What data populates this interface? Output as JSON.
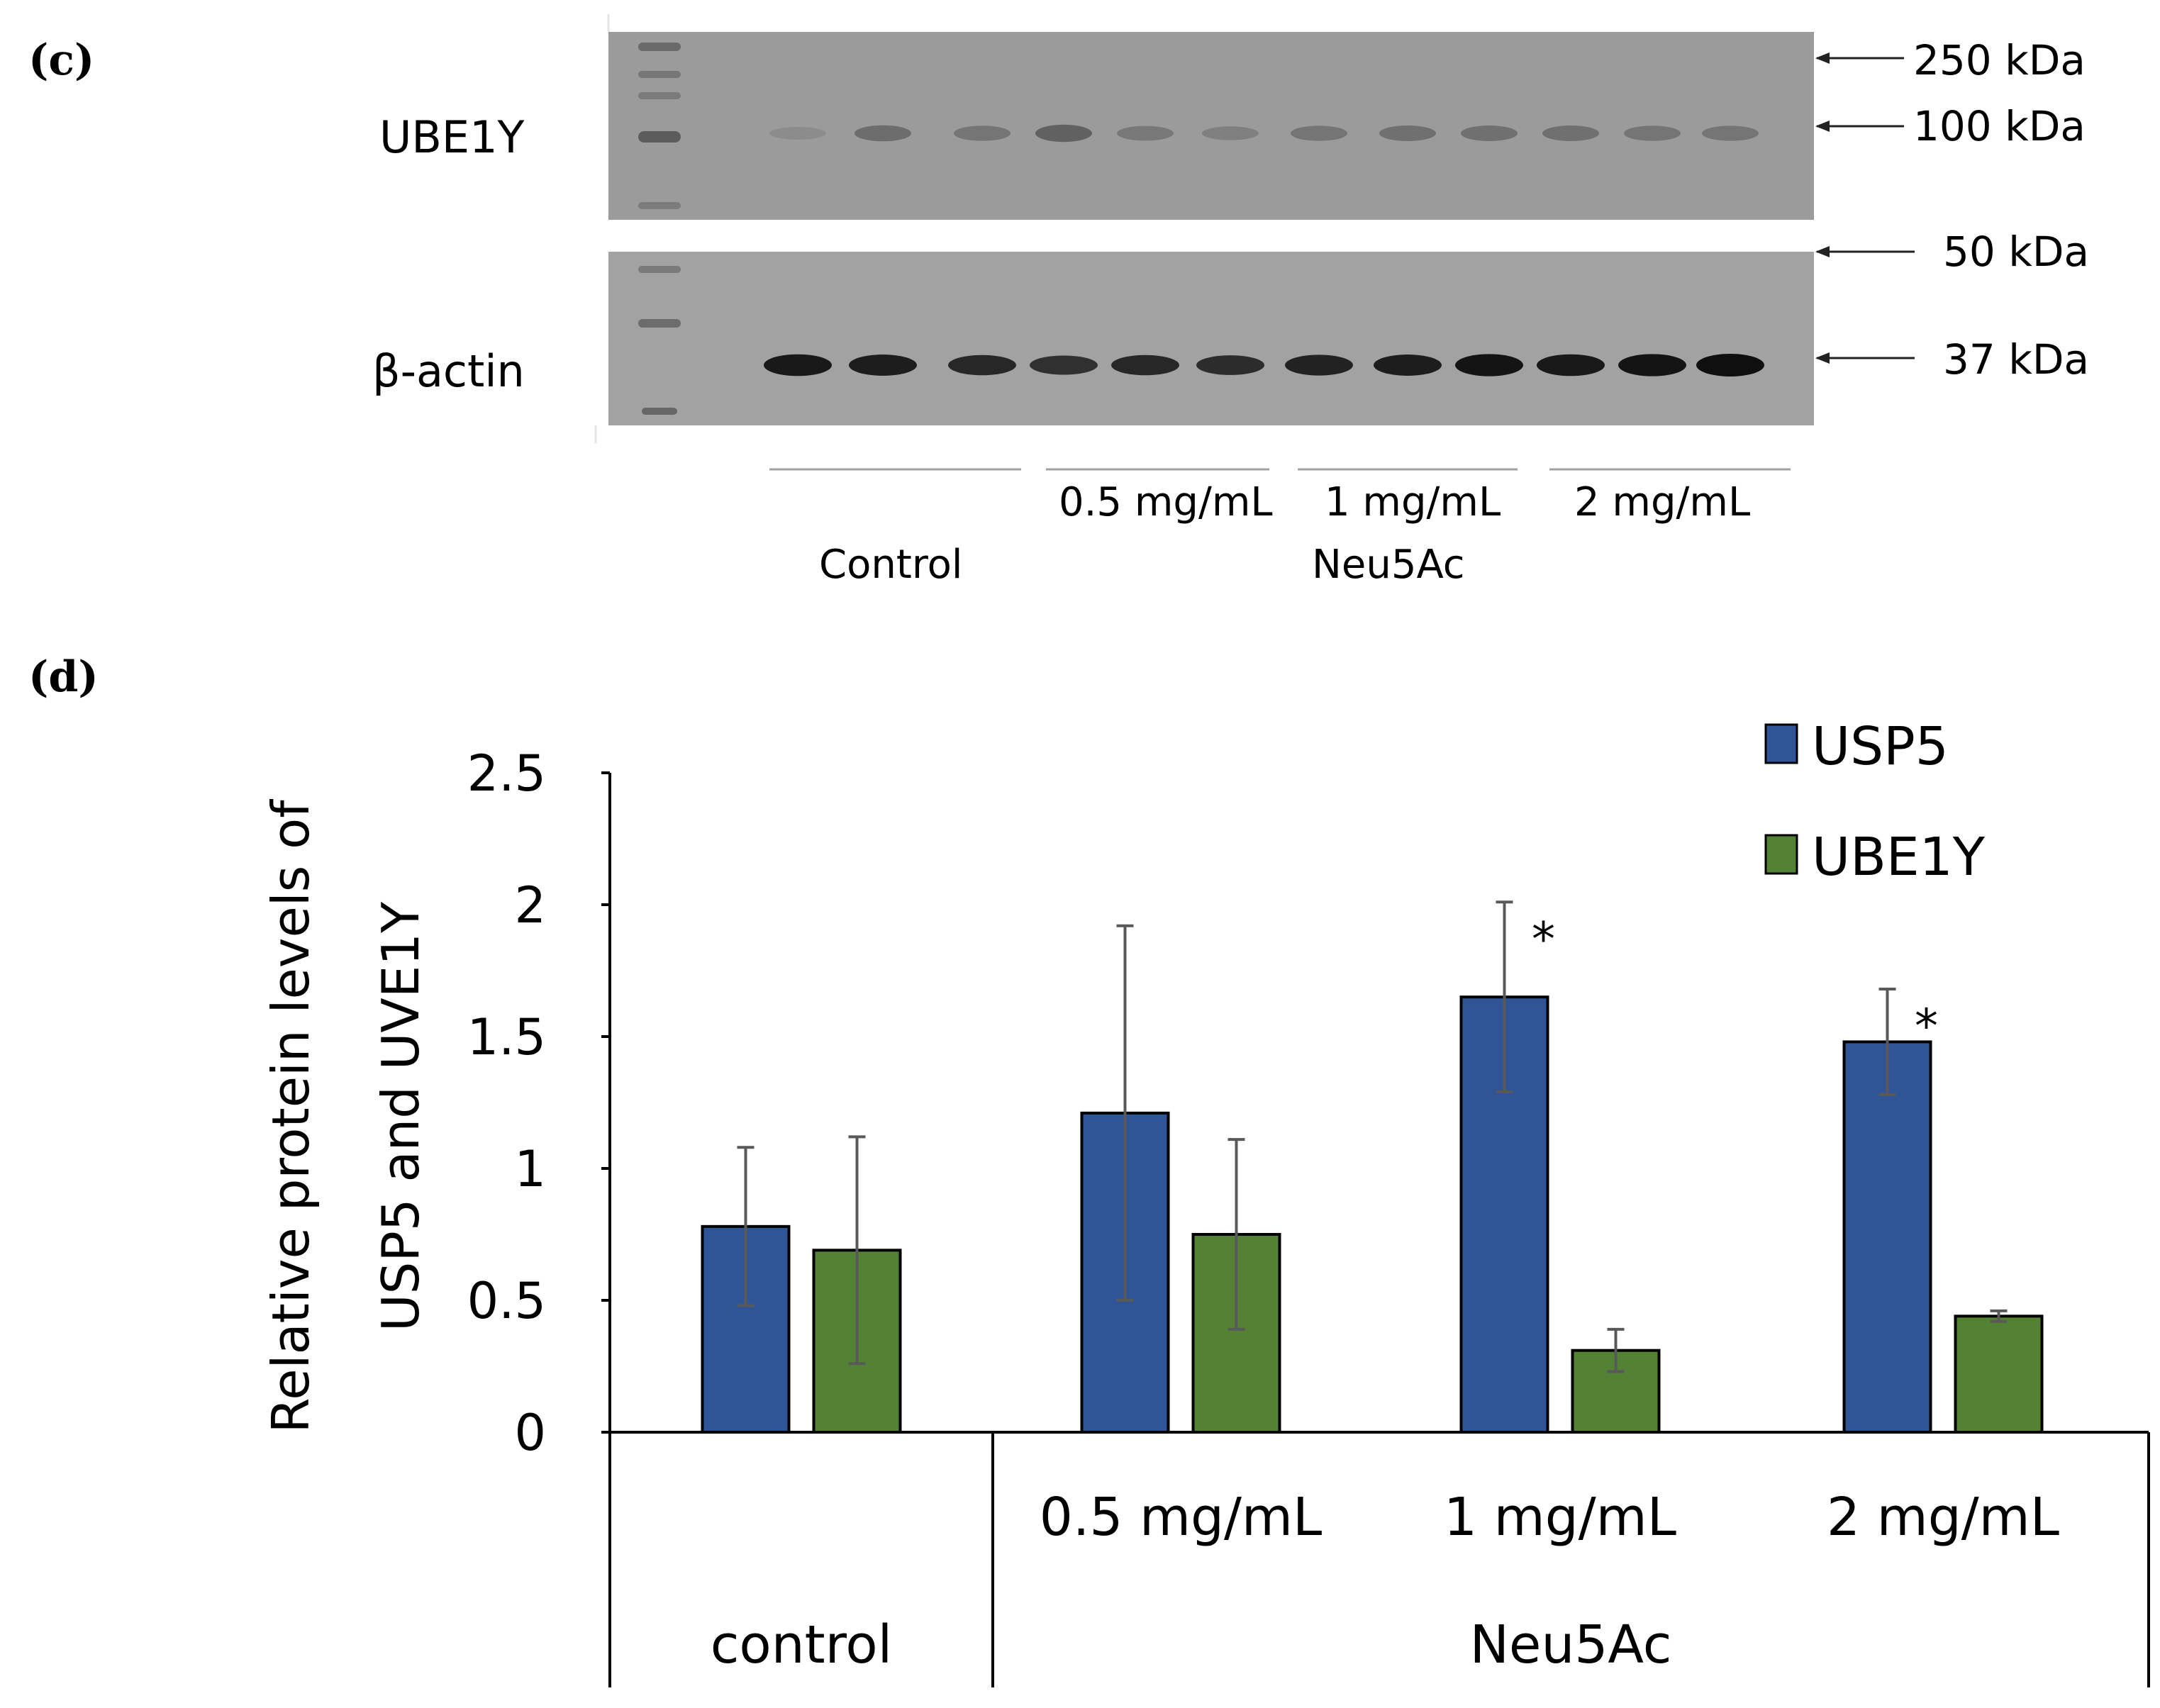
{
  "panel_c": {
    "label": "(c)",
    "rows": [
      {
        "name": "UBE1Y"
      },
      {
        "name": "β-actin"
      }
    ],
    "markers": [
      {
        "label": "250 kDa"
      },
      {
        "label": "100 kDa"
      },
      {
        "label": "50 kDa"
      },
      {
        "label": "37 kDa"
      }
    ],
    "groups": [
      {
        "label": "Control"
      },
      {
        "label": "0.5 mg/mL"
      },
      {
        "label": "1 mg/mL"
      },
      {
        "label": "2 mg/mL"
      }
    ],
    "treatment_label": "Neu5Ac",
    "band_intensity": {
      "UBE1Y": [
        0.15,
        0.55,
        0.45,
        0.7,
        0.4,
        0.3,
        0.45,
        0.5,
        0.5,
        0.5,
        0.45,
        0.45
      ],
      "β-actin": [
        0.9,
        0.85,
        0.75,
        0.65,
        0.75,
        0.7,
        0.8,
        0.85,
        0.95,
        0.9,
        0.95,
        1.0
      ]
    }
  },
  "panel_d": {
    "label": "(d)",
    "chart_data": {
      "type": "bar",
      "title": "",
      "ylabel": "Relative protein levels of USP5 and UVE1Y",
      "ylabel_lines": [
        "Relative protein levels of",
        "USP5 and UVE1Y"
      ],
      "xlabel": "",
      "ylim": [
        0,
        2.5
      ],
      "yticks": [
        "0",
        "0.5",
        "1",
        "1.5",
        "2",
        "2.5"
      ],
      "categories": [
        "control",
        "0.5 mg/mL",
        "1 mg/mL",
        "2 mg/mL"
      ],
      "group_labels": [
        "control",
        "Neu5Ac"
      ],
      "legend_position": "top-right",
      "series": [
        {
          "name": "USP5",
          "color": "#2f5597",
          "values": [
            0.78,
            1.21,
            1.65,
            1.48
          ],
          "errors": [
            0.3,
            0.71,
            0.36,
            0.2
          ],
          "significance": [
            "",
            "",
            "*",
            "*"
          ]
        },
        {
          "name": "UBE1Y",
          "color": "#548235",
          "values": [
            0.69,
            0.75,
            0.31,
            0.44
          ],
          "errors": [
            0.43,
            0.36,
            0.08,
            0.02
          ],
          "significance": [
            "",
            "",
            "",
            ""
          ]
        }
      ]
    }
  }
}
